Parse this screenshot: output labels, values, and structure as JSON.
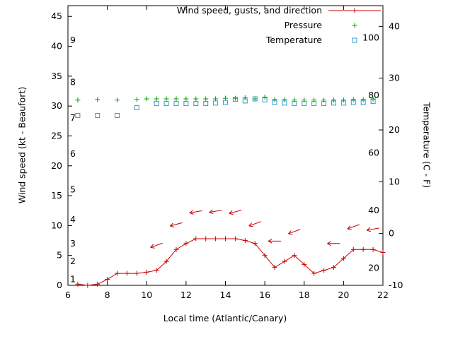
{
  "chart_data": {
    "type": "line",
    "xlabel": "Local time (Atlantic/Canary)",
    "ylabel_left": "Wind speed (kt - Beaufort)",
    "ylabel_right": "Temperature (C - F)",
    "xlim": [
      6,
      22
    ],
    "x_ticks": [
      6,
      8,
      10,
      12,
      14,
      16,
      18,
      20,
      22
    ],
    "y_left_lim": [
      0,
      46.8
    ],
    "y_left_ticks": [
      0,
      5,
      10,
      15,
      20,
      25,
      30,
      35,
      40,
      45
    ],
    "y_right_lim": [
      -10,
      44
    ],
    "y_right_ticks": [
      -10,
      0,
      10,
      20,
      30,
      40
    ],
    "grid": false,
    "legend_position": "top-right-inside",
    "beaufort_scale": [
      {
        "label": "1",
        "kt": 1
      },
      {
        "label": "2",
        "kt": 4
      },
      {
        "label": "3",
        "kt": 7
      },
      {
        "label": "4",
        "kt": 11
      },
      {
        "label": "5",
        "kt": 16
      },
      {
        "label": "6",
        "kt": 22
      },
      {
        "label": "7",
        "kt": 28
      },
      {
        "label": "8",
        "kt": 34
      },
      {
        "label": "9",
        "kt": 41
      }
    ],
    "fahrenheit_scale": [
      {
        "label": "20",
        "f": 20
      },
      {
        "label": "40",
        "f": 40
      },
      {
        "label": "60",
        "f": 60
      },
      {
        "label": "80",
        "f": 80
      },
      {
        "label": "100",
        "f": 100
      }
    ],
    "legend": [
      {
        "label": "Wind speed, gusts, and direction",
        "color": "#cc0000",
        "marker": "line-plus"
      },
      {
        "label": "Pressure",
        "color": "#00a000",
        "marker": "plus"
      },
      {
        "label": "Temperature",
        "color": "#3399cc",
        "marker": "square"
      }
    ],
    "series": [
      {
        "name": "wind_speed",
        "axis": "left",
        "color": "#cc0000",
        "marker": "plus",
        "line": true,
        "points": [
          [
            6.5,
            0.2
          ],
          [
            7,
            0
          ],
          [
            7.5,
            0.2
          ],
          [
            8,
            1
          ],
          [
            8.5,
            2
          ],
          [
            9,
            2
          ],
          [
            9.5,
            2
          ],
          [
            10,
            2.2
          ],
          [
            10.5,
            2.5
          ],
          [
            11,
            4
          ],
          [
            11.5,
            6
          ],
          [
            12,
            7
          ],
          [
            12.5,
            7.8
          ],
          [
            13,
            7.8
          ],
          [
            13.5,
            7.8
          ],
          [
            14,
            7.8
          ],
          [
            14.5,
            7.8
          ],
          [
            15,
            7.5
          ],
          [
            15.5,
            7
          ],
          [
            16,
            5
          ],
          [
            16.5,
            3
          ],
          [
            17,
            4
          ],
          [
            17.5,
            5
          ],
          [
            18,
            3.5
          ],
          [
            18.5,
            2
          ],
          [
            19,
            2.5
          ],
          [
            19.5,
            3
          ],
          [
            20,
            4.5
          ],
          [
            20.5,
            6
          ],
          [
            21,
            6
          ],
          [
            21.5,
            6
          ],
          [
            22,
            5.5
          ]
        ]
      },
      {
        "name": "wind_direction_arrows",
        "axis": "left",
        "color": "#cc0000",
        "type": "arrows",
        "points": [
          [
            10.5,
            6.7,
            160
          ],
          [
            11.5,
            10.2,
            165
          ],
          [
            12.5,
            12.3,
            170
          ],
          [
            13.5,
            12.4,
            170
          ],
          [
            14.5,
            12.3,
            165
          ],
          [
            15.5,
            10.3,
            160
          ],
          [
            16.5,
            7.4,
            180
          ],
          [
            17.5,
            9.0,
            160
          ],
          [
            19.5,
            7.0,
            180
          ],
          [
            20.5,
            9.8,
            160
          ],
          [
            21.5,
            9.4,
            170
          ]
        ]
      },
      {
        "name": "pressure",
        "axis": "left",
        "color": "#00a000",
        "marker": "plus",
        "line": false,
        "points": [
          [
            6.5,
            31.0
          ],
          [
            7.5,
            31.1
          ],
          [
            8.5,
            31.0
          ],
          [
            9.5,
            31.1
          ],
          [
            10,
            31.2
          ],
          [
            10.5,
            31.2
          ],
          [
            11,
            31.2
          ],
          [
            11.5,
            31.2
          ],
          [
            12,
            31.2
          ],
          [
            12.5,
            31.2
          ],
          [
            13,
            31.2
          ],
          [
            13.5,
            31.2
          ],
          [
            14,
            31.3
          ],
          [
            14.5,
            31.3
          ],
          [
            15,
            31.4
          ],
          [
            15.5,
            31.2
          ],
          [
            16,
            31.5
          ],
          [
            16.5,
            31.1
          ],
          [
            17,
            31.1
          ],
          [
            17.5,
            31.0
          ],
          [
            18,
            31.0
          ],
          [
            18.5,
            31.0
          ],
          [
            19,
            31.0
          ],
          [
            19.5,
            31.0
          ],
          [
            20,
            31.0
          ],
          [
            20.5,
            31.1
          ],
          [
            21,
            31.1
          ],
          [
            21.5,
            31.2
          ]
        ]
      },
      {
        "name": "temperature",
        "axis": "right",
        "color": "#3399cc",
        "marker": "square",
        "line": false,
        "points": [
          [
            6.5,
            22.8
          ],
          [
            7.5,
            22.8
          ],
          [
            8.5,
            22.8
          ],
          [
            9.5,
            24.3
          ],
          [
            10.5,
            25.1
          ],
          [
            11,
            25.1
          ],
          [
            11.5,
            25.1
          ],
          [
            12,
            25.1
          ],
          [
            12.5,
            25.1
          ],
          [
            13,
            25.1
          ],
          [
            13.5,
            25.2
          ],
          [
            14,
            25.3
          ],
          [
            14.5,
            25.9
          ],
          [
            15,
            25.6
          ],
          [
            15.5,
            26.0
          ],
          [
            16,
            25.8
          ],
          [
            16.5,
            25.3
          ],
          [
            17,
            25.2
          ],
          [
            17.5,
            25.1
          ],
          [
            18,
            25.1
          ],
          [
            18.5,
            25.1
          ],
          [
            19,
            25.1
          ],
          [
            19.5,
            25.2
          ],
          [
            20,
            25.2
          ],
          [
            20.5,
            25.3
          ],
          [
            21,
            25.3
          ],
          [
            21.5,
            25.5
          ]
        ]
      }
    ]
  }
}
